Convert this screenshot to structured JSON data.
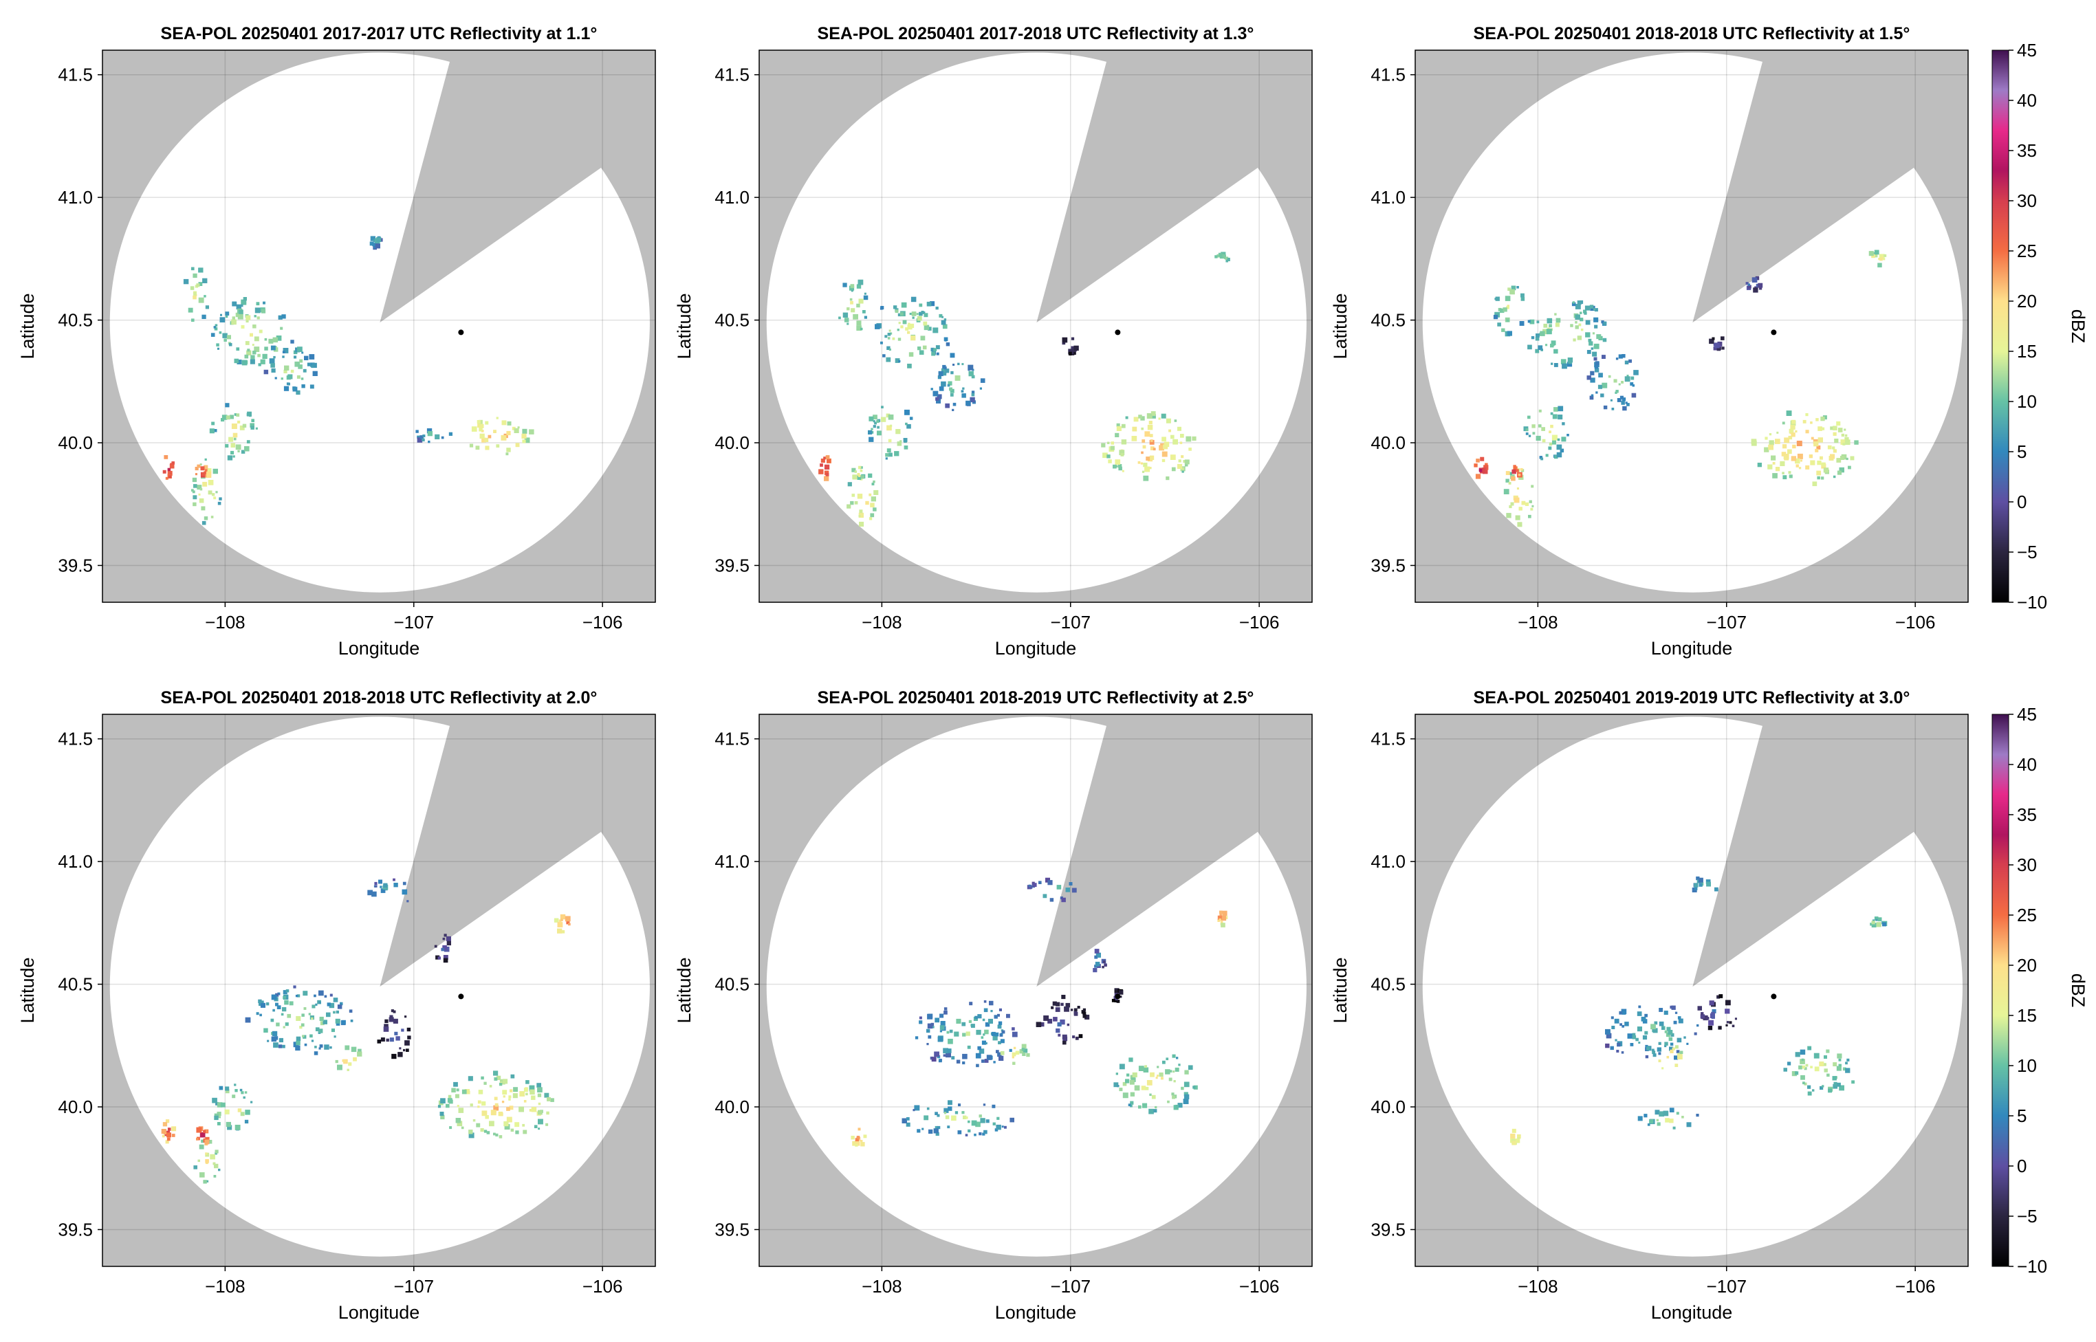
{
  "chart_data": {
    "type": "heatmap",
    "xlabel": "Longitude",
    "ylabel": "Latitude",
    "xlim": [
      -108.65,
      -105.72
    ],
    "ylim": [
      39.35,
      41.6
    ],
    "xticks": [
      -108,
      -107,
      -106
    ],
    "xtick_labels": [
      "−108",
      "−107",
      "−106"
    ],
    "yticks": [
      39.5,
      40.0,
      40.5,
      41.0,
      41.5
    ],
    "ytick_labels": [
      "39.5",
      "40.0",
      "40.5",
      "41.0",
      "41.5"
    ],
    "grid": true,
    "radar_location": {
      "lon": -106.75,
      "lat": 40.45
    },
    "coverage_center": {
      "lon": -107.18,
      "lat": 40.49
    },
    "coverage_radius_lat_deg": 1.1,
    "blocked_sector_start_bearing_deg": 15,
    "blocked_sector_end_bearing_deg": 55,
    "background_color": "#bebebe",
    "coverage_color": "#ffffff",
    "colorbar": {
      "label": "dBZ",
      "range": [
        -10,
        45
      ],
      "ticks": [
        -10,
        -5,
        0,
        5,
        10,
        15,
        20,
        25,
        30,
        35,
        40,
        45
      ],
      "tick_labels": [
        "−10",
        "−5",
        "0",
        "5",
        "10",
        "15",
        "20",
        "25",
        "30",
        "35",
        "40",
        "45"
      ],
      "stops": [
        {
          "v": -10,
          "c": "#000000"
        },
        {
          "v": -5,
          "c": "#2b2540"
        },
        {
          "v": 0,
          "c": "#5e4fa2"
        },
        {
          "v": 5,
          "c": "#3288bd"
        },
        {
          "v": 10,
          "c": "#66c2a5"
        },
        {
          "v": 15,
          "c": "#e6f598"
        },
        {
          "v": 20,
          "c": "#fee08b"
        },
        {
          "v": 25,
          "c": "#f46d43"
        },
        {
          "v": 30,
          "c": "#d53e4f"
        },
        {
          "v": 33,
          "c": "#b01560"
        },
        {
          "v": 37,
          "c": "#e7298a"
        },
        {
          "v": 41,
          "c": "#9e7bc6"
        },
        {
          "v": 45,
          "c": "#3f0f4f"
        }
      ]
    },
    "panels": [
      {
        "title": "SEA-POL 20250401 2017-2017 UTC Reflectivity at 1.1°",
        "echoes": [
          {
            "lon": -107.85,
            "lat": 40.45,
            "rlon": 0.22,
            "rlat": 0.14,
            "dbz": 17
          },
          {
            "lon": -107.65,
            "lat": 40.3,
            "rlon": 0.14,
            "rlat": 0.12,
            "dbz": 14
          },
          {
            "lon": -108.15,
            "lat": 40.6,
            "rlon": 0.07,
            "rlat": 0.12,
            "dbz": 17
          },
          {
            "lon": -107.95,
            "lat": 40.05,
            "rlon": 0.12,
            "rlat": 0.12,
            "dbz": 17
          },
          {
            "lon": -108.1,
            "lat": 39.8,
            "rlon": 0.08,
            "rlat": 0.14,
            "dbz": 19
          },
          {
            "lon": -108.3,
            "lat": 39.9,
            "rlon": 0.03,
            "rlat": 0.05,
            "dbz": 34
          },
          {
            "lon": -108.12,
            "lat": 39.88,
            "rlon": 0.04,
            "rlat": 0.03,
            "dbz": 31
          },
          {
            "lon": -106.55,
            "lat": 40.03,
            "rlon": 0.18,
            "rlat": 0.08,
            "dbz": 22
          },
          {
            "lon": -106.9,
            "lat": 40.03,
            "rlon": 0.1,
            "rlat": 0.03,
            "dbz": 13
          },
          {
            "lon": -107.2,
            "lat": 40.82,
            "rlon": 0.03,
            "rlat": 0.03,
            "dbz": 11
          }
        ]
      },
      {
        "title": "SEA-POL 20250401 2017-2018 UTC Reflectivity at 1.3°",
        "echoes": [
          {
            "lon": -107.85,
            "lat": 40.45,
            "rlon": 0.22,
            "rlat": 0.14,
            "dbz": 16
          },
          {
            "lon": -107.6,
            "lat": 40.25,
            "rlon": 0.15,
            "rlat": 0.12,
            "dbz": 12
          },
          {
            "lon": -108.15,
            "lat": 40.55,
            "rlon": 0.08,
            "rlat": 0.12,
            "dbz": 17
          },
          {
            "lon": -107.95,
            "lat": 40.05,
            "rlon": 0.12,
            "rlat": 0.12,
            "dbz": 17
          },
          {
            "lon": -108.1,
            "lat": 39.78,
            "rlon": 0.08,
            "rlat": 0.12,
            "dbz": 21
          },
          {
            "lon": -108.3,
            "lat": 39.9,
            "rlon": 0.03,
            "rlat": 0.05,
            "dbz": 34
          },
          {
            "lon": -108.12,
            "lat": 39.88,
            "rlon": 0.04,
            "rlat": 0.03,
            "dbz": 20
          },
          {
            "lon": -106.58,
            "lat": 39.98,
            "rlon": 0.25,
            "rlat": 0.14,
            "dbz": 22
          },
          {
            "lon": -107.0,
            "lat": 40.4,
            "rlon": 0.04,
            "rlat": 0.04,
            "dbz": 3
          },
          {
            "lon": -106.2,
            "lat": 40.75,
            "rlon": 0.04,
            "rlat": 0.02,
            "dbz": 16
          }
        ]
      },
      {
        "title": "SEA-POL 20250401 2018-2018 UTC Reflectivity at 1.5°",
        "echoes": [
          {
            "lon": -107.85,
            "lat": 40.45,
            "rlon": 0.22,
            "rlat": 0.14,
            "dbz": 16
          },
          {
            "lon": -107.6,
            "lat": 40.25,
            "rlon": 0.15,
            "rlat": 0.12,
            "dbz": 13
          },
          {
            "lon": -108.15,
            "lat": 40.55,
            "rlon": 0.08,
            "rlat": 0.12,
            "dbz": 17
          },
          {
            "lon": -107.95,
            "lat": 40.05,
            "rlon": 0.12,
            "rlat": 0.12,
            "dbz": 17
          },
          {
            "lon": -108.1,
            "lat": 39.78,
            "rlon": 0.08,
            "rlat": 0.12,
            "dbz": 21
          },
          {
            "lon": -108.3,
            "lat": 39.9,
            "rlon": 0.03,
            "rlat": 0.05,
            "dbz": 34
          },
          {
            "lon": -108.12,
            "lat": 39.88,
            "rlon": 0.04,
            "rlat": 0.03,
            "dbz": 30
          },
          {
            "lon": -106.58,
            "lat": 39.98,
            "rlon": 0.28,
            "rlat": 0.15,
            "dbz": 22
          },
          {
            "lon": -106.85,
            "lat": 40.65,
            "rlon": 0.05,
            "rlat": 0.03,
            "dbz": 8
          },
          {
            "lon": -107.05,
            "lat": 40.4,
            "rlon": 0.04,
            "rlat": 0.04,
            "dbz": 3
          },
          {
            "lon": -106.2,
            "lat": 40.75,
            "rlon": 0.05,
            "rlat": 0.03,
            "dbz": 20
          }
        ]
      },
      {
        "title": "SEA-POL 20250401 2018-2018 UTC Reflectivity at 2.0°",
        "echoes": [
          {
            "lon": -107.6,
            "lat": 40.35,
            "rlon": 0.28,
            "rlat": 0.14,
            "dbz": 14
          },
          {
            "lon": -107.1,
            "lat": 40.3,
            "rlon": 0.1,
            "rlat": 0.1,
            "dbz": 3
          },
          {
            "lon": -107.35,
            "lat": 40.2,
            "rlon": 0.08,
            "rlat": 0.05,
            "dbz": 22
          },
          {
            "lon": -107.95,
            "lat": 40.0,
            "rlon": 0.12,
            "rlat": 0.1,
            "dbz": 17
          },
          {
            "lon": -108.1,
            "lat": 39.78,
            "rlon": 0.08,
            "rlat": 0.1,
            "dbz": 18
          },
          {
            "lon": -108.3,
            "lat": 39.9,
            "rlon": 0.03,
            "rlat": 0.05,
            "dbz": 30
          },
          {
            "lon": -108.12,
            "lat": 39.88,
            "rlon": 0.03,
            "rlat": 0.04,
            "dbz": 34
          },
          {
            "lon": -106.55,
            "lat": 40.0,
            "rlon": 0.32,
            "rlat": 0.14,
            "dbz": 20
          },
          {
            "lon": -107.1,
            "lat": 40.88,
            "rlon": 0.14,
            "rlat": 0.05,
            "dbz": 11
          },
          {
            "lon": -106.85,
            "lat": 40.65,
            "rlon": 0.05,
            "rlat": 0.06,
            "dbz": 5
          },
          {
            "lon": -106.2,
            "lat": 40.75,
            "rlon": 0.05,
            "rlat": 0.04,
            "dbz": 26
          }
        ]
      },
      {
        "title": "SEA-POL 20250401 2018-2019 UTC Reflectivity at 2.5°",
        "echoes": [
          {
            "lon": -107.55,
            "lat": 40.3,
            "rlon": 0.28,
            "rlat": 0.14,
            "dbz": 12
          },
          {
            "lon": -107.05,
            "lat": 40.35,
            "rlon": 0.14,
            "rlat": 0.1,
            "dbz": 3
          },
          {
            "lon": -107.3,
            "lat": 40.22,
            "rlon": 0.08,
            "rlat": 0.05,
            "dbz": 20
          },
          {
            "lon": -107.6,
            "lat": 39.95,
            "rlon": 0.3,
            "rlat": 0.07,
            "dbz": 14
          },
          {
            "lon": -106.55,
            "lat": 40.1,
            "rlon": 0.22,
            "rlat": 0.12,
            "dbz": 18
          },
          {
            "lon": -107.1,
            "lat": 40.88,
            "rlon": 0.14,
            "rlat": 0.05,
            "dbz": 11
          },
          {
            "lon": -106.85,
            "lat": 40.6,
            "rlon": 0.04,
            "rlat": 0.05,
            "dbz": 8
          },
          {
            "lon": -108.12,
            "lat": 39.88,
            "rlon": 0.04,
            "rlat": 0.04,
            "dbz": 26
          },
          {
            "lon": -106.2,
            "lat": 40.78,
            "rlon": 0.04,
            "rlat": 0.04,
            "dbz": 26
          },
          {
            "lon": -106.75,
            "lat": 40.45,
            "rlon": 0.03,
            "rlat": 0.03,
            "dbz": 0
          }
        ]
      },
      {
        "title": "SEA-POL 20250401 2019-2019 UTC Reflectivity at 3.0°",
        "echoes": [
          {
            "lon": -107.4,
            "lat": 40.3,
            "rlon": 0.26,
            "rlat": 0.12,
            "dbz": 12
          },
          {
            "lon": -107.05,
            "lat": 40.38,
            "rlon": 0.12,
            "rlat": 0.08,
            "dbz": 3
          },
          {
            "lon": -107.3,
            "lat": 40.2,
            "rlon": 0.08,
            "rlat": 0.05,
            "dbz": 22
          },
          {
            "lon": -106.5,
            "lat": 40.15,
            "rlon": 0.2,
            "rlat": 0.1,
            "dbz": 17
          },
          {
            "lon": -107.3,
            "lat": 39.95,
            "rlon": 0.18,
            "rlat": 0.04,
            "dbz": 15
          },
          {
            "lon": -107.1,
            "lat": 40.9,
            "rlon": 0.1,
            "rlat": 0.04,
            "dbz": 12
          },
          {
            "lon": -108.12,
            "lat": 39.88,
            "rlon": 0.02,
            "rlat": 0.03,
            "dbz": 24
          },
          {
            "lon": -106.2,
            "lat": 40.75,
            "rlon": 0.04,
            "rlat": 0.02,
            "dbz": 16
          }
        ]
      }
    ]
  }
}
